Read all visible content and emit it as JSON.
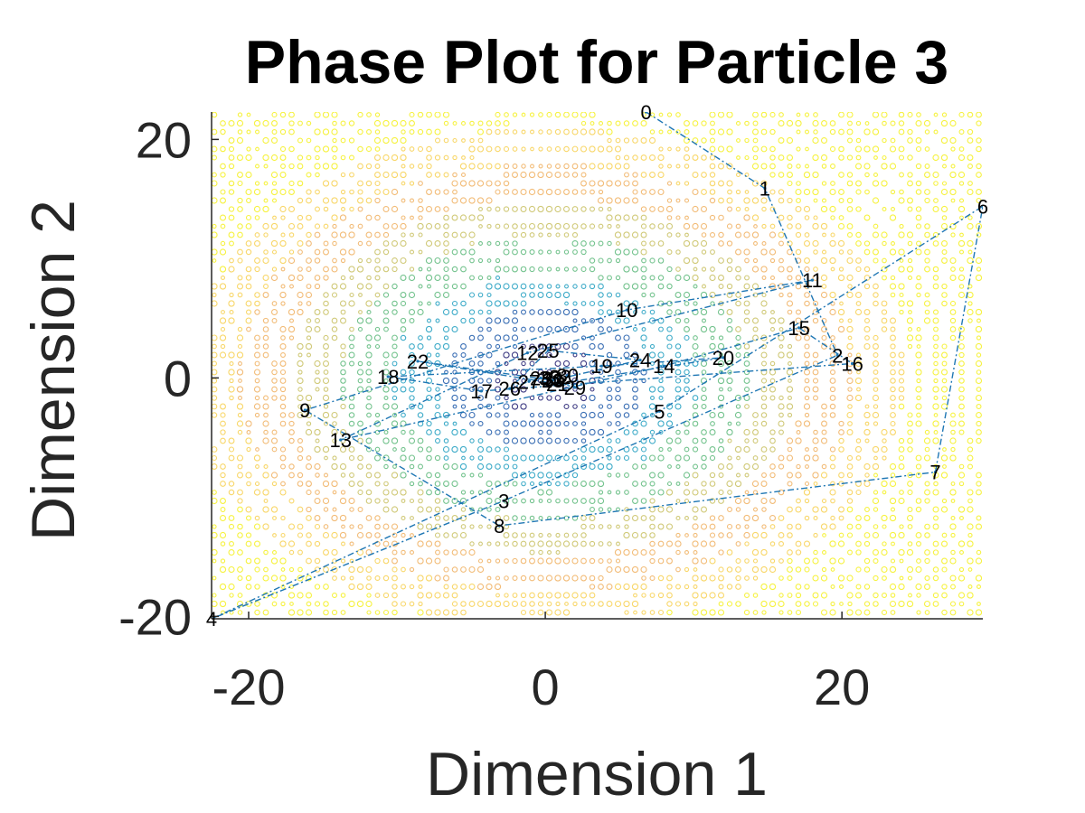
{
  "chart_data": {
    "type": "line",
    "title": "Phase Plot for Particle 3",
    "xlabel": "Dimension 1",
    "ylabel": "Dimension 2",
    "xlim": [
      -22.5,
      29.5
    ],
    "ylim": [
      -20.2,
      22.3
    ],
    "xticks": [
      -20,
      0,
      20
    ],
    "yticks": [
      -20,
      0,
      20
    ],
    "xtick_labels": [
      "-20",
      "0",
      "20"
    ],
    "ytick_labels": [
      "-20",
      "0",
      "20"
    ],
    "grid": false,
    "background": "contour",
    "contour_center": [
      0,
      0
    ],
    "contour_colormap": [
      "#1f1b6e",
      "#1a57a8",
      "#1f9ec0",
      "#5cb87a",
      "#c8c060",
      "#f0b060",
      "#f7d050",
      "#f4f020"
    ],
    "series": [
      {
        "line_color": "#1f77b4",
        "line_style": "dash-dot",
        "points": [
          {
            "label": "0",
            "x": 6.8,
            "y": 22.3
          },
          {
            "label": "1",
            "x": 14.8,
            "y": 15.9
          },
          {
            "label": "2",
            "x": 19.7,
            "y": 1.9
          },
          {
            "label": "3",
            "x": -2.8,
            "y": -10.3
          },
          {
            "label": "4",
            "x": -22.5,
            "y": -20.2
          },
          {
            "label": "5",
            "x": 7.7,
            "y": -2.8
          },
          {
            "label": "6",
            "x": 29.5,
            "y": 14.4
          },
          {
            "label": "7",
            "x": 26.3,
            "y": -7.9
          },
          {
            "label": "8",
            "x": -3.1,
            "y": -12.4
          },
          {
            "label": "9",
            "x": -16.2,
            "y": -2.7
          },
          {
            "label": "10",
            "x": 5.5,
            "y": 5.7
          },
          {
            "label": "11",
            "x": 18.0,
            "y": 8.2
          },
          {
            "label": "12",
            "x": -1.2,
            "y": 2.1
          },
          {
            "label": "13",
            "x": -13.8,
            "y": -5.2
          },
          {
            "label": "14",
            "x": 8.0,
            "y": 1.0
          },
          {
            "label": "15",
            "x": 17.1,
            "y": 4.2
          },
          {
            "label": "16",
            "x": 20.7,
            "y": 1.2
          },
          {
            "label": "17",
            "x": -4.3,
            "y": -1.1
          },
          {
            "label": "18",
            "x": -10.6,
            "y": 0.1
          },
          {
            "label": "19",
            "x": 3.8,
            "y": 1.0
          },
          {
            "label": "20",
            "x": 12.0,
            "y": 1.7
          },
          {
            "label": "21",
            "x": 0.8,
            "y": -0.5
          },
          {
            "label": "22",
            "x": -8.6,
            "y": 1.4
          },
          {
            "label": "23",
            "x": 0.5,
            "y": -0.2
          },
          {
            "label": "24",
            "x": 6.4,
            "y": 1.5
          },
          {
            "label": "25",
            "x": 0.2,
            "y": 2.3
          },
          {
            "label": "26",
            "x": -2.4,
            "y": -0.9
          },
          {
            "label": "27",
            "x": -1.1,
            "y": -0.3
          },
          {
            "label": "28",
            "x": -0.3,
            "y": 0.0
          },
          {
            "label": "29",
            "x": 2.0,
            "y": -0.8
          },
          {
            "label": "30",
            "x": 1.5,
            "y": 0.2
          },
          {
            "label": "31",
            "x": 0.6,
            "y": -0.1
          },
          {
            "label": "32",
            "x": 1.0,
            "y": 0.1
          },
          {
            "label": "33",
            "x": 0.3,
            "y": 0.0
          }
        ]
      }
    ]
  }
}
